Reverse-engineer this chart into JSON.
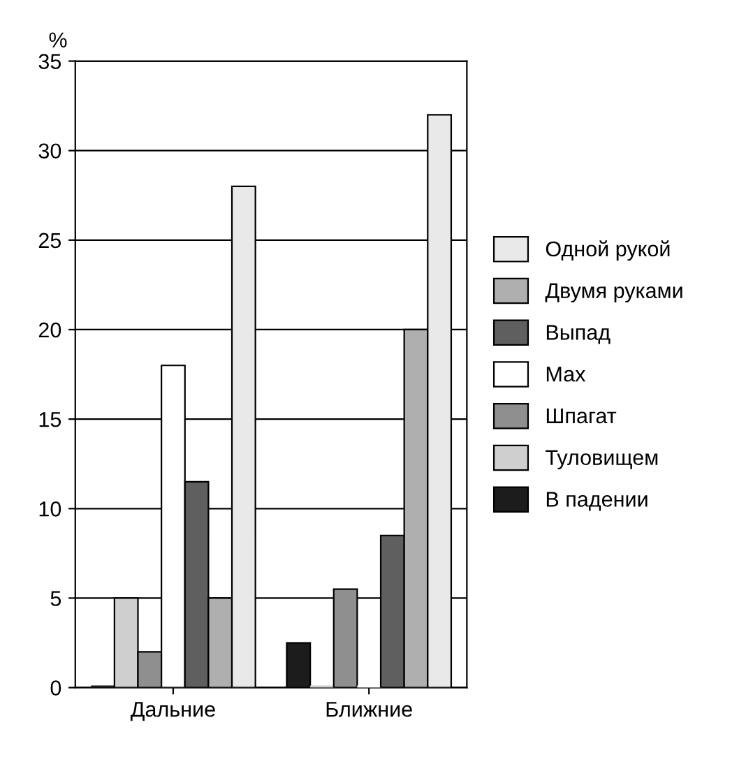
{
  "chart_data": {
    "type": "bar",
    "ylabel": "%",
    "categories": [
      "Дальние",
      "Ближние"
    ],
    "series": [
      {
        "name": "В падении",
        "color": "#1c1c1c",
        "values": [
          0,
          2.5
        ]
      },
      {
        "name": "Туловищем",
        "color": "#cfcfcf",
        "values": [
          5,
          0
        ]
      },
      {
        "name": "Шпагат",
        "color": "#8f8f8f",
        "values": [
          2,
          5.5
        ]
      },
      {
        "name": "Мах",
        "color": "#ffffff",
        "values": [
          18,
          0
        ]
      },
      {
        "name": "Выпад",
        "color": "#5f5f5f",
        "values": [
          11.5,
          8.5
        ]
      },
      {
        "name": "Двумя руками",
        "color": "#afafaf",
        "values": [
          5,
          20
        ]
      },
      {
        "name": "Одной рукой",
        "color": "#e9e9e9",
        "values": [
          28,
          32
        ]
      }
    ],
    "ylim": [
      0,
      35
    ],
    "yticks": [
      0,
      5,
      10,
      15,
      20,
      25,
      30,
      35
    ],
    "grid": "y",
    "legend": "right"
  }
}
